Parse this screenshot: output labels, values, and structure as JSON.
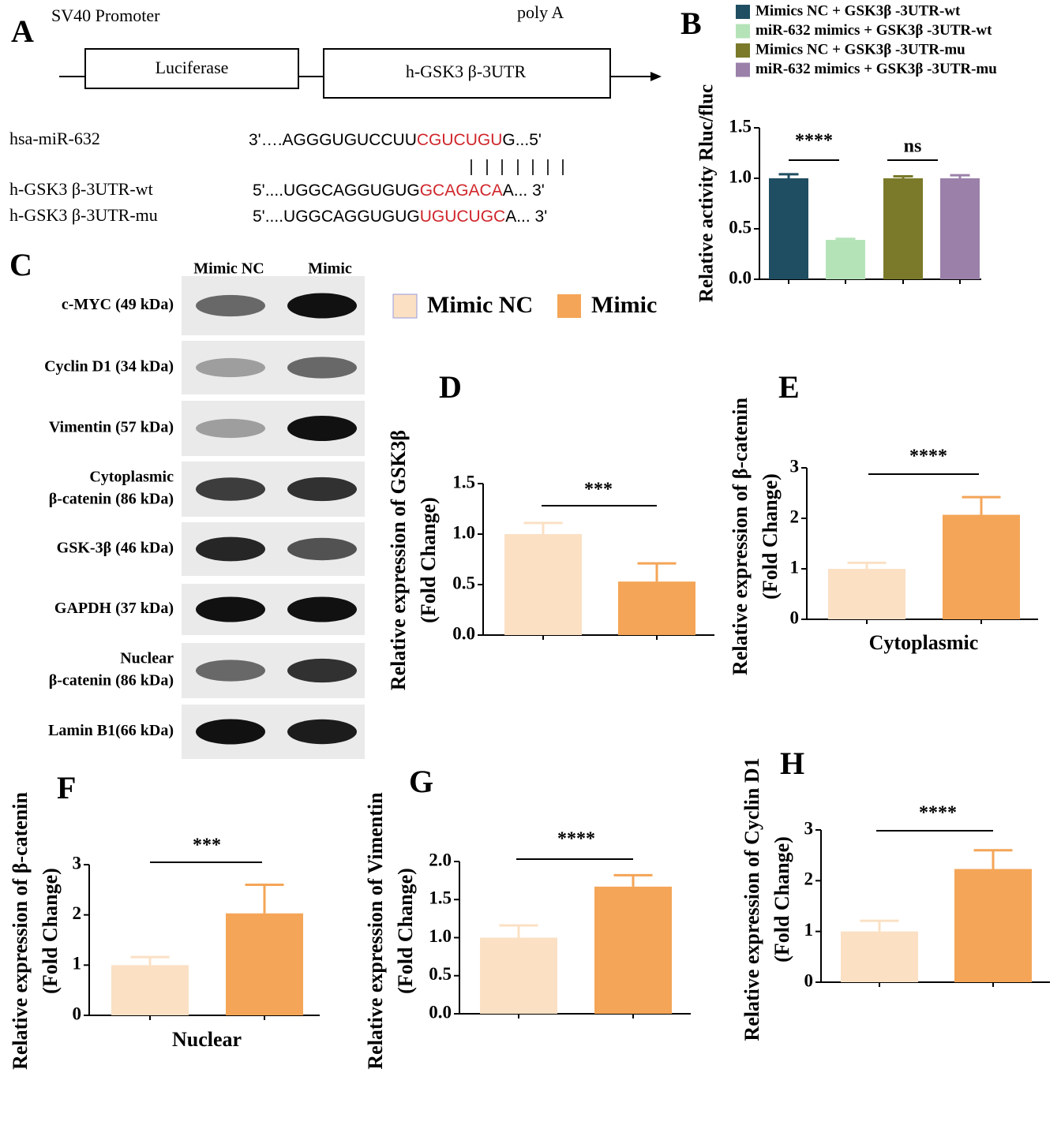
{
  "construct": {
    "label": "A",
    "promoter": "SV40 Promoter",
    "polya": "poly A",
    "boxes": [
      "Luciferase",
      "h-GSK3 β-3UTR"
    ],
    "sequences": [
      {
        "name": "hsa-miR-632",
        "prefix": "3'….AGGGUGUCCUU",
        "site": "CGUCUGU",
        "suffix": "G...5'"
      },
      {
        "name": "h-GSK3 β-3UTR-wt",
        "prefix": "5'....UGGCAGGUGUG",
        "site": "GCAGACA",
        "suffix": "A... 3'"
      },
      {
        "name": "h-GSK3 β-3UTR-mu",
        "prefix": "5'....UGGCAGGUGUG",
        "site": "UGUCUGC",
        "suffix": "A... 3'"
      }
    ]
  },
  "blot": {
    "label": "C",
    "columns": [
      "Mimic NC",
      "Mimic"
    ],
    "rows": [
      [
        "c-MYC (49 kDa)"
      ],
      [
        "Cyclin D1 (34 kDa)"
      ],
      [
        "Vimentin (57 kDa)"
      ],
      [
        "Cytoplasmic",
        "β-catenin (86 kDa)"
      ],
      [
        "GSK-3β (46 kDa)"
      ],
      [
        "GAPDH (37 kDa)"
      ],
      [
        "Nuclear",
        "β-catenin (86 kDa)"
      ],
      [
        "Lamin B1(66 kDa)"
      ]
    ]
  },
  "shared_legend": [
    {
      "name": "Mimic NC",
      "color": "#fbe0c4"
    },
    {
      "name": "Mimic",
      "color": "#f4a557"
    }
  ],
  "chart_data": [
    {
      "type": "bar",
      "label": "B",
      "ylabel": [
        "Relative activity Rluc/fluc"
      ],
      "series": [
        {
          "name": "Mimics NC + GSK3β -3UTR-wt",
          "color": "#1f4e62",
          "values": [
            1.0
          ],
          "errors": [
            0.04
          ]
        },
        {
          "name": "miR-632 mimics + GSK3β -3UTR-wt",
          "color": "#b5e3b8",
          "values": [
            0.39
          ],
          "errors": [
            0.01
          ]
        },
        {
          "name": "Mimics NC + GSK3β -3UTR-mu",
          "color": "#7a7a2a",
          "values": [
            1.0
          ],
          "errors": [
            0.02
          ]
        },
        {
          "name": "miR-632 mimics + GSK3β -3UTR-mu",
          "color": "#9b80aa",
          "values": [
            1.0
          ],
          "errors": [
            0.03
          ]
        }
      ],
      "significance": [
        "****",
        "ns"
      ],
      "ylim": [
        0,
        1.5
      ],
      "yticks": [
        {
          "value": 0,
          "label": "0.0"
        },
        0.5,
        {
          "value": 1,
          "label": "1.0"
        },
        1.5
      ]
    },
    {
      "type": "bar",
      "label": "D",
      "ylabel": [
        "Relative expression of GSK3β",
        "(Fold Change)"
      ],
      "values": [
        1.0,
        0.53
      ],
      "errors": [
        0.11,
        0.18
      ],
      "significance": [
        "***"
      ],
      "ylim": [
        0,
        1.5
      ],
      "yticks": [
        {
          "value": 0,
          "label": "0.0"
        },
        0.5,
        {
          "value": 1,
          "label": "1.0"
        },
        1.5
      ]
    },
    {
      "type": "bar",
      "label": "E",
      "ylabel": [
        "Relative expression of β-catenin",
        "(Fold Change)"
      ],
      "xlabel": "Cytoplasmic",
      "values": [
        1.0,
        2.07
      ],
      "errors": [
        0.12,
        0.35
      ],
      "significance": [
        "****"
      ],
      "ylim": [
        0,
        3
      ],
      "yticks": [
        0,
        1,
        2,
        3
      ]
    },
    {
      "type": "bar",
      "label": "F",
      "ylabel": [
        "Relative expression of β-catenin",
        "(Fold Change)"
      ],
      "xlabel": "Nuclear",
      "values": [
        1.0,
        2.03
      ],
      "errors": [
        0.16,
        0.57
      ],
      "significance": [
        "***"
      ],
      "ylim": [
        0,
        3
      ],
      "yticks": [
        0,
        1,
        2,
        3
      ]
    },
    {
      "type": "bar",
      "label": "G",
      "ylabel": [
        "Relative expression of  Vimentin",
        "(Fold Change)"
      ],
      "values": [
        1.0,
        1.67
      ],
      "errors": [
        0.16,
        0.15
      ],
      "significance": [
        "****"
      ],
      "ylim": [
        0,
        2
      ],
      "yticks": [
        {
          "value": 0,
          "label": "0.0"
        },
        0.5,
        {
          "value": 1,
          "label": "1.0"
        },
        1.5,
        {
          "value": 2,
          "label": "2.0"
        }
      ]
    },
    {
      "type": "bar",
      "label": "H",
      "ylabel": [
        "Relative expression of Cyclin D1",
        "(Fold Change)"
      ],
      "values": [
        1.0,
        2.23
      ],
      "errors": [
        0.21,
        0.37
      ],
      "significance": [
        "****"
      ],
      "ylim": [
        0,
        3
      ],
      "yticks": [
        0,
        1,
        2,
        3
      ]
    }
  ]
}
